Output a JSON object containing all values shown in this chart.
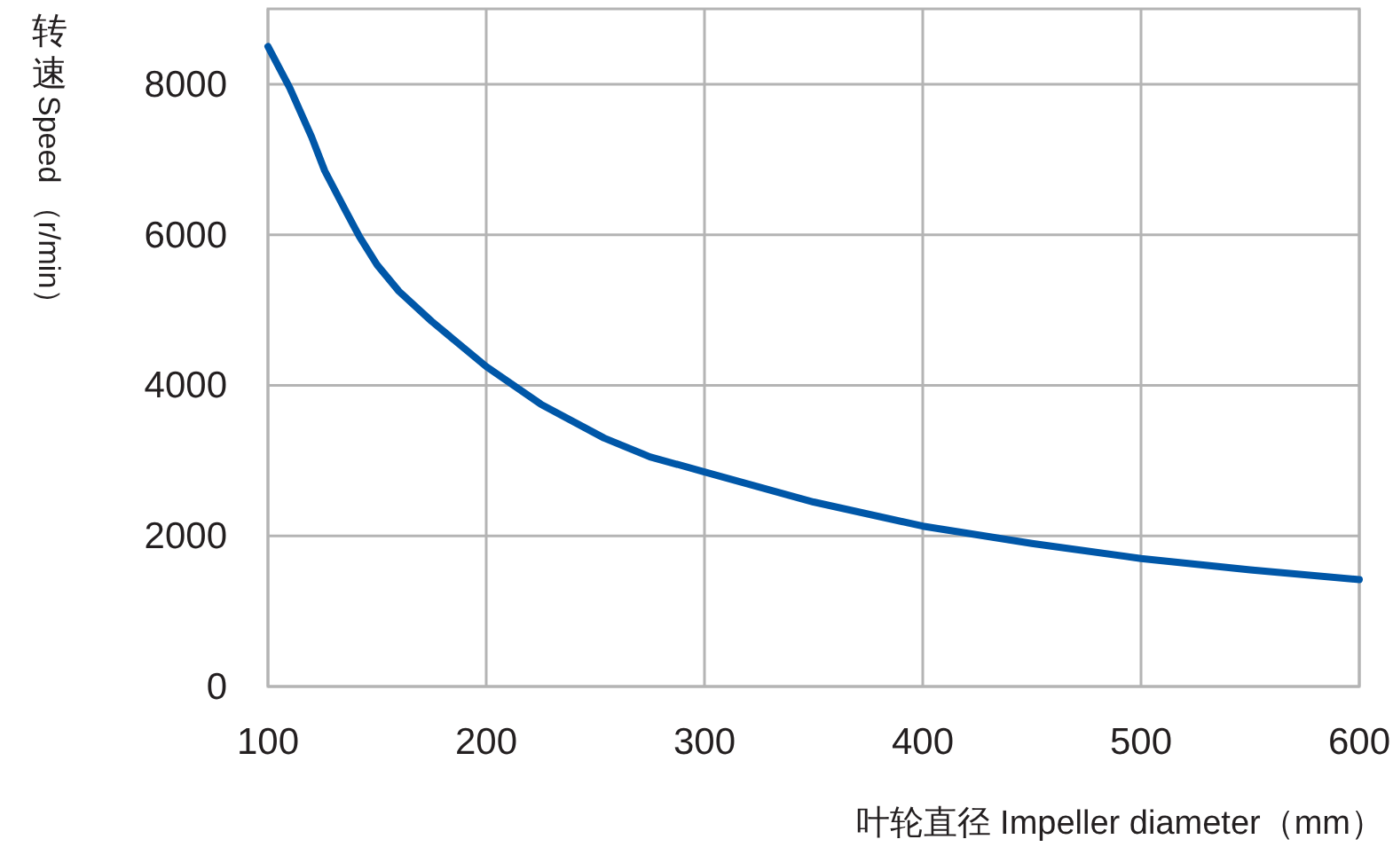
{
  "chart_data": {
    "type": "line",
    "xlabel": "叶轮直径 Impeller diameter（mm）",
    "ylabel": "转速 Speed （r/min）",
    "x": [
      100,
      110,
      120,
      126,
      135,
      142,
      150,
      160,
      175,
      200,
      225,
      254,
      275,
      300,
      350,
      400,
      450,
      500,
      550,
      600
    ],
    "series": [
      {
        "color": "#0057a8",
        "values": [
          8500,
          7950,
          7300,
          6850,
          6350,
          5970,
          5600,
          5250,
          4850,
          4250,
          3750,
          3300,
          3050,
          2850,
          2450,
          2130,
          1900,
          1700,
          1550,
          1420
        ]
      }
    ],
    "xlim": [
      100,
      600
    ],
    "ylim": [
      0,
      9000
    ],
    "xticks": [
      100,
      200,
      300,
      400,
      500,
      600
    ],
    "yticks": [
      0,
      2000,
      4000,
      6000,
      8000
    ],
    "grid": true,
    "marker": "none",
    "line_style": "solid"
  }
}
